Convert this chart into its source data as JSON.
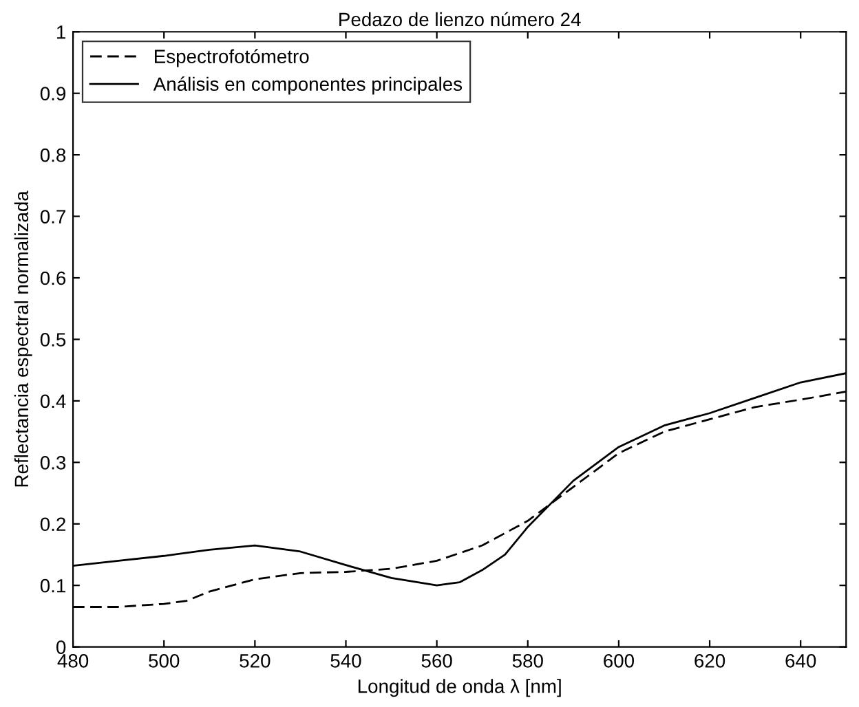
{
  "chart_data": {
    "type": "line",
    "title": "Pedazo de lienzo número 24",
    "xlabel": "Longitud de onda λ [nm]",
    "ylabel": "Reflectancia espectral normalizada",
    "xlim": [
      480,
      650
    ],
    "xticks": [
      480,
      500,
      520,
      540,
      560,
      580,
      600,
      620,
      640
    ],
    "ylim": [
      0,
      1
    ],
    "yticks": [
      0,
      0.1,
      0.2,
      0.3,
      0.4,
      0.5,
      0.6,
      0.7,
      0.8,
      0.9,
      1
    ],
    "grid": false,
    "legend": "top left",
    "marker": "none",
    "series": [
      {
        "name": "Espectrofotómetro",
        "color": "#000000",
        "line_style": "dashed",
        "x": [
          480,
          490,
          500,
          505,
          510,
          520,
          530,
          540,
          550,
          560,
          570,
          580,
          590,
          600,
          610,
          620,
          630,
          640,
          650
        ],
        "values": [
          0.065,
          0.065,
          0.07,
          0.075,
          0.09,
          0.11,
          0.12,
          0.122,
          0.127,
          0.14,
          0.165,
          0.205,
          0.26,
          0.315,
          0.35,
          0.37,
          0.39,
          0.402,
          0.415
        ]
      },
      {
        "name": "Análisis en componentes principales",
        "color": "#000000",
        "line_style": "solid",
        "x": [
          480,
          490,
          500,
          510,
          520,
          530,
          540,
          550,
          560,
          565,
          570,
          575,
          580,
          590,
          600,
          610,
          620,
          630,
          640,
          650
        ],
        "values": [
          0.132,
          0.14,
          0.148,
          0.158,
          0.165,
          0.155,
          0.133,
          0.112,
          0.1,
          0.105,
          0.125,
          0.15,
          0.195,
          0.27,
          0.325,
          0.36,
          0.38,
          0.405,
          0.43,
          0.445
        ]
      }
    ]
  }
}
